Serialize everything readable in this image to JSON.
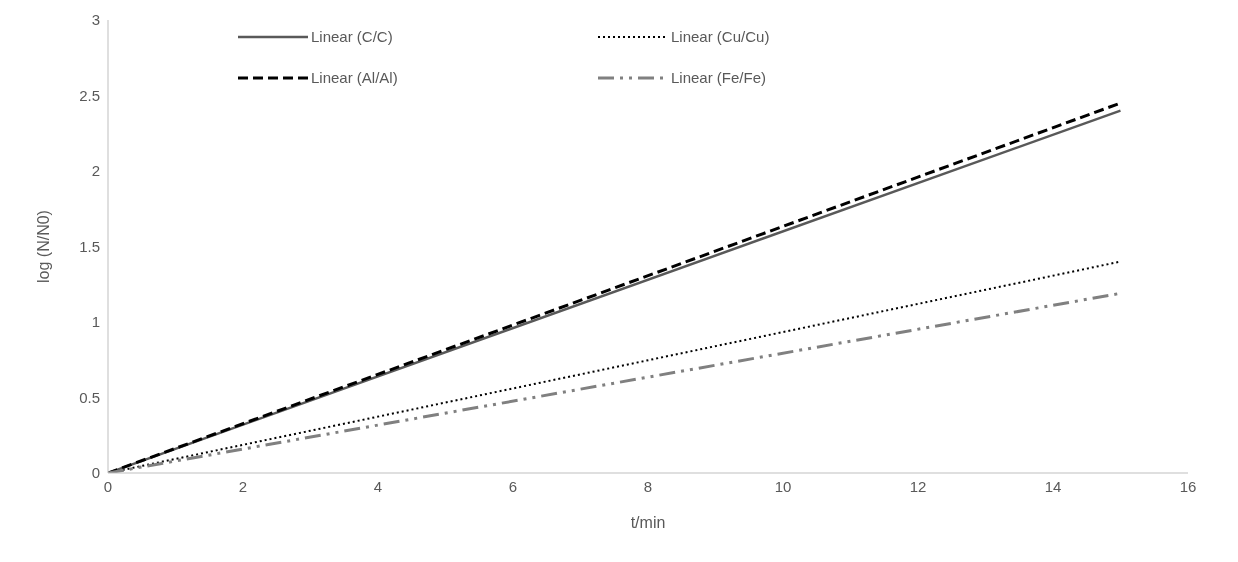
{
  "chart_data": {
    "type": "line",
    "xlabel": "t/min",
    "ylabel": "log (N/N0)",
    "x": [
      0,
      15
    ],
    "series": [
      {
        "name": "Linear (C/C)",
        "color": "#595959",
        "values": [
          0,
          2.4
        ],
        "line_style": "solid"
      },
      {
        "name": "Linear (Cu/Cu)",
        "color": "#000000",
        "values": [
          0,
          1.4
        ],
        "line_style": "dotted"
      },
      {
        "name": "Linear (Al/Al)",
        "color": "#000000",
        "values": [
          0,
          2.45
        ],
        "line_style": "dashed"
      },
      {
        "name": "Linear (Fe/Fe)",
        "color": "#808080",
        "values": [
          0,
          1.19
        ],
        "line_style": "dashdot"
      }
    ],
    "xlim": [
      0,
      16
    ],
    "xticks": [
      0,
      2,
      4,
      6,
      8,
      10,
      12,
      14,
      16
    ],
    "ylim": [
      0,
      3
    ],
    "yticks": [
      0,
      0.5,
      1,
      1.5,
      2,
      2.5,
      3
    ],
    "grid": false,
    "legend": "top",
    "marker": "none"
  }
}
